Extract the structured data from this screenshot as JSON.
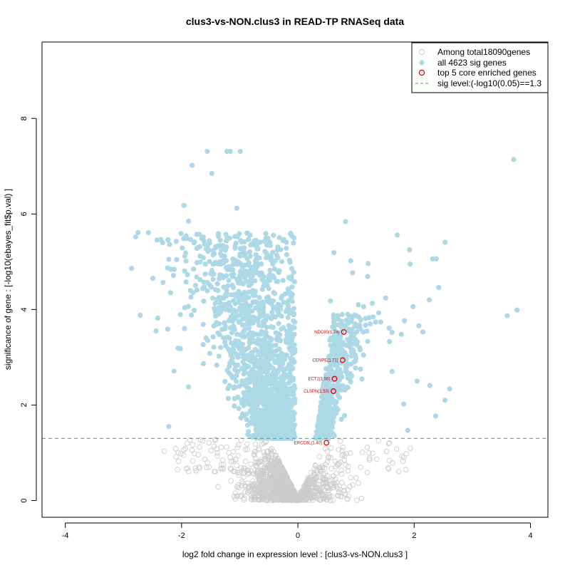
{
  "chart_data": {
    "type": "scatter",
    "title": "clus3-vs-NON.clus3 in READ-TP RNASeq data",
    "xlabel": "log2 fold change in expression level : [clus3-vs-NON.clus3 ]",
    "ylabel": "significance of gene : [-log10(ebayes_fit$p.val) ]",
    "xlim": [
      -4.4,
      4.3
    ],
    "ylim": [
      -0.35,
      9.6
    ],
    "xticks": [
      -4,
      -2,
      0,
      2,
      4
    ],
    "yticks": [
      0,
      2,
      4,
      6,
      8
    ],
    "xtick_labels": [
      "-4",
      "-2",
      "0",
      "2",
      "4"
    ],
    "ytick_labels": [
      "0",
      "2",
      "4",
      "6",
      "8"
    ],
    "sig_level": 1.3,
    "colors": {
      "background_genes": "#cccccc",
      "sig_genes": "#add8e6",
      "core_genes": "#dd0000",
      "sig_line": "#22cc22",
      "label": "#cc0000"
    },
    "legend": {
      "position": "top-right",
      "entries": [
        {
          "label": "Among total18090genes",
          "marker": "open-circle-gray"
        },
        {
          "label": "all 4623 sig genes",
          "marker": "filled-circle-lightblue"
        },
        {
          "label": "top 5 core enriched genes",
          "marker": "open-circle-red"
        },
        {
          "label": "sig level:(-log10(0.05)==1.3",
          "marker": "dashed-line-green"
        }
      ]
    },
    "series": [
      {
        "name": "top 5 core enriched genes",
        "points": [
          {
            "label": "NDC80(1.74)",
            "x": 0.79,
            "y": 3.53
          },
          {
            "label": "CENPE(1.71)",
            "x": 0.77,
            "y": 2.94
          },
          {
            "label": "ECT2(1.56)",
            "x": 0.63,
            "y": 2.55
          },
          {
            "label": "CLSPN(1.53)",
            "x": 0.61,
            "y": 2.29
          },
          {
            "label": "ERCC6L(1.40)",
            "x": 0.49,
            "y": 1.21
          }
        ]
      },
      {
        "name": "all 4623 sig genes (selected outliers)",
        "points": [
          {
            "x": -1.56,
            "y": 7.31
          },
          {
            "x": -1.22,
            "y": 7.31
          },
          {
            "x": -1.16,
            "y": 7.31
          },
          {
            "x": -0.99,
            "y": 7.31
          },
          {
            "x": -1.82,
            "y": 7.02
          },
          {
            "x": -1.48,
            "y": 6.85
          },
          {
            "x": 3.71,
            "y": 7.14
          },
          {
            "x": -1.96,
            "y": 6.18
          },
          {
            "x": -1.05,
            "y": 6.12
          },
          {
            "x": 0.82,
            "y": 5.84
          },
          {
            "x": -2.75,
            "y": 5.61
          },
          {
            "x": -2.57,
            "y": 5.61
          },
          {
            "x": -2.79,
            "y": 5.52
          },
          {
            "x": -2.86,
            "y": 4.86
          },
          {
            "x": -2.24,
            "y": 4.87
          },
          {
            "x": -2.18,
            "y": 4.84
          },
          {
            "x": -2.13,
            "y": 4.84
          },
          {
            "x": -1.88,
            "y": 5.85
          },
          {
            "x": -2.22,
            "y": 5.05
          },
          {
            "x": -2.71,
            "y": 3.88
          },
          {
            "x": -2.41,
            "y": 3.82
          },
          {
            "x": -2.44,
            "y": 3.55
          },
          {
            "x": -2.24,
            "y": 3.59
          },
          {
            "x": -2.06,
            "y": 3.19
          },
          {
            "x": -2.02,
            "y": 3.18
          },
          {
            "x": -1.95,
            "y": 3.6
          },
          {
            "x": -2.13,
            "y": 2.71
          },
          {
            "x": -1.88,
            "y": 2.38
          },
          {
            "x": -2.22,
            "y": 1.55
          },
          {
            "x": 1.71,
            "y": 5.56
          },
          {
            "x": 1.92,
            "y": 5.25
          },
          {
            "x": 2.32,
            "y": 5.06
          },
          {
            "x": 2.38,
            "y": 5.06
          },
          {
            "x": 2.53,
            "y": 5.41
          },
          {
            "x": 1.93,
            "y": 4.95
          },
          {
            "x": 2.42,
            "y": 4.46
          },
          {
            "x": 2.26,
            "y": 4.2
          },
          {
            "x": 1.98,
            "y": 4.06
          },
          {
            "x": 2.08,
            "y": 3.66
          },
          {
            "x": 2.15,
            "y": 3.53
          },
          {
            "x": 1.78,
            "y": 3.48
          },
          {
            "x": 1.62,
            "y": 3.52
          },
          {
            "x": 3.6,
            "y": 3.87
          },
          {
            "x": 3.77,
            "y": 3.99
          },
          {
            "x": 2.27,
            "y": 2.41
          },
          {
            "x": 2.61,
            "y": 2.34
          },
          {
            "x": 2.53,
            "y": 2.1
          },
          {
            "x": 2.05,
            "y": 2.5
          },
          {
            "x": 2.37,
            "y": 1.77
          },
          {
            "x": 1.89,
            "y": 1.47
          },
          {
            "x": 1.82,
            "y": 2.02
          },
          {
            "x": 1.62,
            "y": 2.7
          },
          {
            "x": 0.62,
            "y": 5.19
          },
          {
            "x": 0.91,
            "y": 5.02
          },
          {
            "x": 1.21,
            "y": 4.96
          },
          {
            "x": 0.94,
            "y": 4.77
          },
          {
            "x": 1.2,
            "y": 4.69
          },
          {
            "x": 1.51,
            "y": 4.24
          },
          {
            "x": 1.28,
            "y": 4.13
          },
          {
            "x": 1.04,
            "y": 4.1
          },
          {
            "x": 0.56,
            "y": 4.18
          },
          {
            "x": 1.39,
            "y": 3.93
          },
          {
            "x": 1.13,
            "y": 4.06
          },
          {
            "x": 1.57,
            "y": 3.61
          }
        ]
      }
    ]
  }
}
